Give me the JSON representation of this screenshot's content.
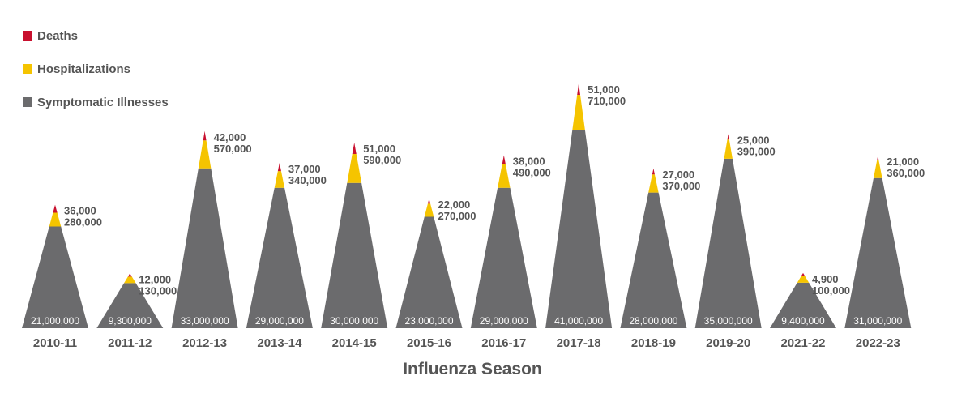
{
  "legend": {
    "deaths": {
      "label": "Deaths",
      "color": "#c8102e"
    },
    "hospitalizations": {
      "label": "Hospitalizations",
      "color": "#f5c400"
    },
    "illnesses": {
      "label": "Symptomatic Illnesses",
      "color": "#6b6b6d"
    }
  },
  "chart_data": {
    "type": "area",
    "xlabel": "Influenza Season",
    "categories": [
      "2010-11",
      "2011-12",
      "2012-13",
      "2013-14",
      "2014-15",
      "2015-16",
      "2016-17",
      "2017-18",
      "2018-19",
      "2019-20",
      "2021-22",
      "2022-23"
    ],
    "series": [
      {
        "name": "Symptomatic Illnesses",
        "values": [
          21000000,
          9300000,
          33000000,
          29000000,
          30000000,
          23000000,
          29000000,
          41000000,
          28000000,
          35000000,
          9400000,
          31000000
        ],
        "labels": [
          "21,000,000",
          "9,300,000",
          "33,000,000",
          "29,000,000",
          "30,000,000",
          "23,000,000",
          "29,000,000",
          "41,000,000",
          "28,000,000",
          "35,000,000",
          "9,400,000",
          "31,000,000"
        ]
      },
      {
        "name": "Hospitalizations",
        "values": [
          280000,
          130000,
          570000,
          340000,
          590000,
          270000,
          490000,
          710000,
          370000,
          390000,
          100000,
          360000
        ],
        "labels": [
          "280,000",
          "130,000",
          "570,000",
          "340,000",
          "590,000",
          "270,000",
          "490,000",
          "710,000",
          "370,000",
          "390,000",
          "100,000",
          "360,000"
        ]
      },
      {
        "name": "Deaths",
        "values": [
          36000,
          12000,
          42000,
          37000,
          51000,
          22000,
          38000,
          51000,
          27000,
          25000,
          4900,
          21000
        ],
        "labels": [
          "36,000",
          "12,000",
          "42,000",
          "37,000",
          "51,000",
          "22,000",
          "38,000",
          "51,000",
          "27,000",
          "25,000",
          "4,900",
          "21,000"
        ]
      }
    ]
  }
}
